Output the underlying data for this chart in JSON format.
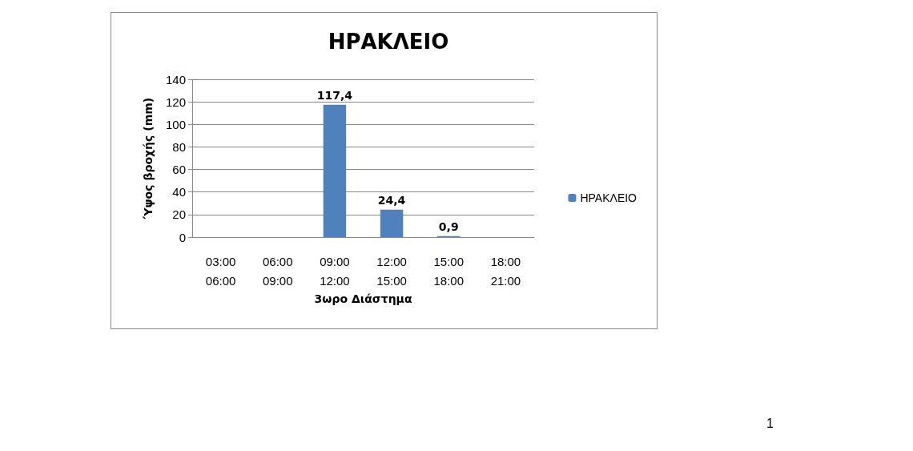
{
  "chart_data": {
    "type": "bar",
    "title": "ΗΡΑΚΛΕΙΟ",
    "xlabel": "3ωρο Διάστημα",
    "ylabel": "Ύψος βροχής (mm)",
    "categories": [
      "03:00\n06:00",
      "06:00\n09:00",
      "09:00\n12:00",
      "12:00\n15:00",
      "15:00\n18:00",
      "18:00\n21:00"
    ],
    "series": [
      {
        "name": "ΗΡΑΚΛΕΙΟ",
        "color": "#4f81bd",
        "values": [
          0,
          0,
          117.4,
          24.4,
          0.9,
          0
        ],
        "value_labels": [
          null,
          null,
          "117,4",
          "24,4",
          "0,9",
          null
        ]
      }
    ],
    "ylim": [
      0,
      140
    ],
    "yticks": [
      0,
      20,
      40,
      60,
      80,
      100,
      120,
      140
    ],
    "grid": "y",
    "legend": "right",
    "annotations": [
      "1"
    ]
  }
}
